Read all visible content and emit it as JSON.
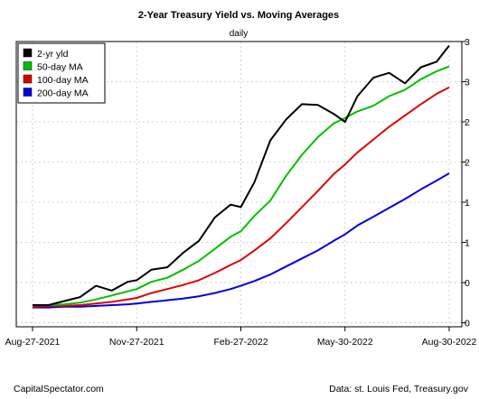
{
  "chart_data": {
    "type": "line",
    "title": "2-Year Treasury Yield vs. Moving Averages",
    "subtitle": "daily",
    "xlabel": "",
    "ylabel": "",
    "x_ticks": [
      "Aug-27-2021",
      "Nov-27-2021",
      "Feb-27-2022",
      "May-30-2022",
      "Aug-30-2022"
    ],
    "y_ticks": [
      0,
      0.5,
      1,
      1.5,
      2,
      2.5,
      3,
      3.5
    ],
    "y_tick_labels": [
      "0",
      "0",
      "1",
      "1",
      "2",
      "2",
      "3",
      "3"
    ],
    "ylim": [
      -0.05,
      3.5
    ],
    "grid": true,
    "legend_position": "top-left",
    "x": [
      "2021-08-27",
      "2021-09-10",
      "2021-09-24",
      "2021-10-08",
      "2021-10-22",
      "2021-11-05",
      "2021-11-19",
      "2021-11-27",
      "2021-12-10",
      "2021-12-24",
      "2022-01-07",
      "2022-01-21",
      "2022-02-04",
      "2022-02-18",
      "2022-02-27",
      "2022-03-11",
      "2022-03-25",
      "2022-04-08",
      "2022-04-22",
      "2022-05-06",
      "2022-05-20",
      "2022-05-30",
      "2022-06-10",
      "2022-06-24",
      "2022-07-08",
      "2022-07-22",
      "2022-08-05",
      "2022-08-19",
      "2022-08-30"
    ],
    "series": [
      {
        "name": "2-yr yld",
        "color": "#000000",
        "values": [
          0.22,
          0.22,
          0.27,
          0.32,
          0.46,
          0.4,
          0.51,
          0.53,
          0.66,
          0.69,
          0.87,
          1.02,
          1.31,
          1.47,
          1.44,
          1.75,
          2.27,
          2.53,
          2.72,
          2.71,
          2.6,
          2.5,
          2.82,
          3.05,
          3.11,
          2.98,
          3.18,
          3.25,
          3.45
        ]
      },
      {
        "name": "50-day MA",
        "color": "#00c000",
        "values": [
          0.22,
          0.22,
          0.23,
          0.25,
          0.29,
          0.34,
          0.39,
          0.42,
          0.51,
          0.56,
          0.66,
          0.77,
          0.92,
          1.07,
          1.14,
          1.33,
          1.52,
          1.83,
          2.09,
          2.31,
          2.48,
          2.55,
          2.63,
          2.7,
          2.82,
          2.9,
          3.03,
          3.13,
          3.19
        ]
      },
      {
        "name": "100-day MA",
        "color": "#e00000",
        "values": [
          0.2,
          0.21,
          0.21,
          0.22,
          0.24,
          0.26,
          0.29,
          0.31,
          0.37,
          0.42,
          0.47,
          0.53,
          0.62,
          0.72,
          0.78,
          0.9,
          1.05,
          1.24,
          1.44,
          1.64,
          1.85,
          1.97,
          2.12,
          2.28,
          2.44,
          2.58,
          2.72,
          2.85,
          2.93
        ]
      },
      {
        "name": "200-day MA",
        "color": "#0000e0",
        "values": [
          0.19,
          0.19,
          0.2,
          0.2,
          0.21,
          0.22,
          0.23,
          0.24,
          0.26,
          0.28,
          0.3,
          0.33,
          0.37,
          0.42,
          0.46,
          0.52,
          0.6,
          0.7,
          0.8,
          0.9,
          1.02,
          1.1,
          1.21,
          1.32,
          1.43,
          1.54,
          1.66,
          1.77,
          1.86
        ]
      }
    ]
  },
  "footer": {
    "left": "CapitalSpectator.com",
    "right": "Data: st. Louis Fed, Treasury.gov"
  }
}
